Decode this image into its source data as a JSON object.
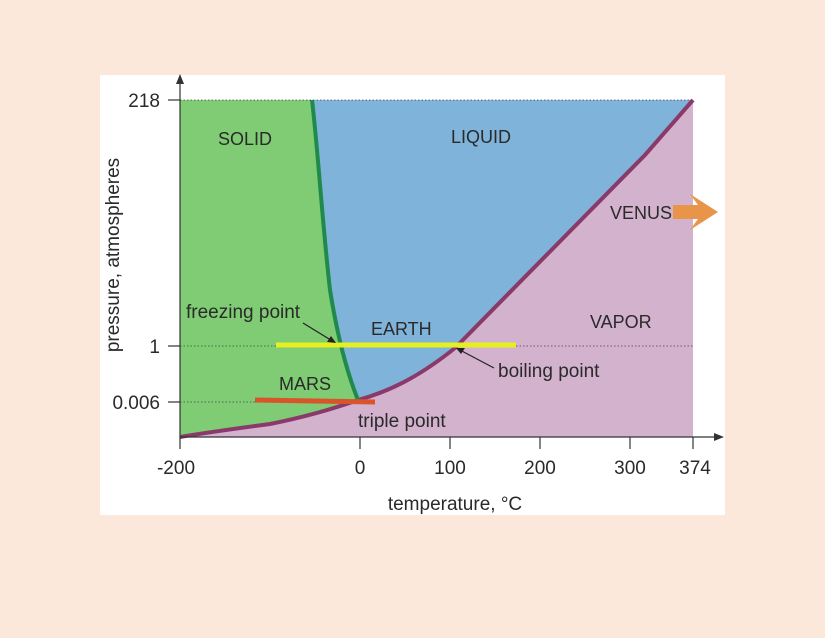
{
  "diagram": {
    "y_axis_label": "pressure, atmospheres",
    "x_axis_label": "temperature, °C",
    "y_ticks": [
      "218",
      "1",
      "0.006"
    ],
    "x_ticks": [
      "-200",
      "0",
      "100",
      "200",
      "300",
      "374"
    ],
    "regions": {
      "solid": "SOLID",
      "liquid": "LIQUID",
      "vapor": "VAPOR"
    },
    "planets": {
      "venus": "VENUS",
      "earth": "EARTH",
      "mars": "MARS"
    },
    "annotations": {
      "freezing_point": "freezing point",
      "boiling_point": "boiling point",
      "triple_point": "triple point"
    },
    "colors": {
      "background": "#fce8da",
      "solid": "#7fcc74",
      "liquid": "#7fb3d9",
      "vapor": "#d2b2cd",
      "melting_curve": "#1f8a4c",
      "boundary_curve": "#8a3a6a",
      "earth_line": "#e6f020",
      "mars_line": "#d9542a",
      "venus_arrow": "#e8954a"
    }
  }
}
